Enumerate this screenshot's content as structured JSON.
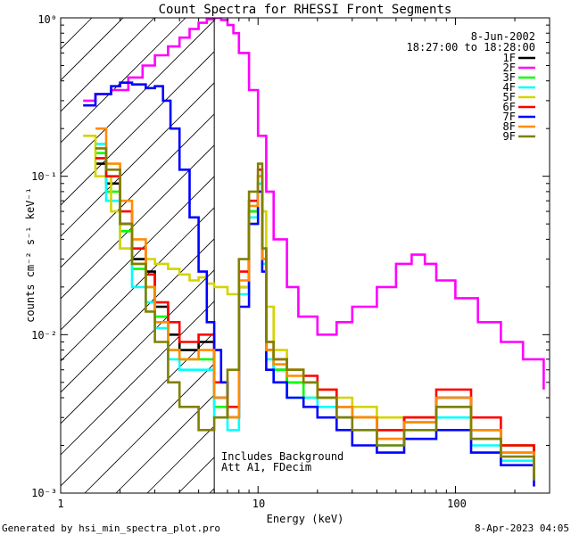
{
  "chart_data": {
    "type": "line",
    "title": "Count Spectra for RHESSI Front Segments",
    "xlabel": "Energy (keV)",
    "ylabel": "counts cm⁻² s⁻¹ keV⁻¹",
    "xscale": "log",
    "yscale": "log",
    "xlim": [
      1,
      300
    ],
    "ylim": [
      0.001,
      1
    ],
    "x_tick_labels": [
      "1",
      "10",
      "100"
    ],
    "y_tick_labels": [
      "10⁻³",
      "10⁻²",
      "10⁻¹",
      "10⁰"
    ],
    "attenuator_boundary_keV": 6,
    "legend_date": "8-Jun-2002",
    "legend_time": "18:27:00 to 18:28:00",
    "annotations": [
      "Includes Background",
      "Att A1, FDecim"
    ],
    "footer_left": "Generated by hsi_min_spectra_plot.pro",
    "footer_right": "8-Apr-2023 04:05",
    "series": [
      {
        "name": "1F",
        "color": "#000000",
        "x": [
          1.5,
          1.7,
          2.0,
          2.3,
          2.7,
          3.0,
          3.5,
          4.0,
          5.0,
          6.0,
          7.0,
          8.0,
          9.0,
          10.0,
          10.5,
          11.0,
          12.0,
          14.0,
          17.0,
          20.0,
          25.0,
          30.0,
          40.0,
          55.0,
          80.0,
          120.0,
          170.0,
          250.0
        ],
        "y": [
          0.12,
          0.09,
          0.05,
          0.03,
          0.025,
          0.015,
          0.01,
          0.008,
          0.009,
          0.004,
          0.003,
          0.02,
          0.06,
          0.09,
          0.03,
          0.008,
          0.006,
          0.005,
          0.005,
          0.004,
          0.003,
          0.003,
          0.0025,
          0.003,
          0.004,
          0.0025,
          0.002,
          0.0015
        ]
      },
      {
        "name": "2F",
        "color": "#ff00ff",
        "x": [
          1.3,
          1.5,
          1.8,
          2.2,
          2.6,
          3.0,
          3.5,
          4.0,
          4.5,
          5.0,
          5.5,
          6.0,
          6.5,
          7.0,
          7.5,
          8.0,
          9.0,
          10.0,
          11.0,
          12.0,
          14.0,
          16.0,
          20.0,
          25.0,
          30.0,
          40.0,
          50.0,
          60.0,
          70.0,
          80.0,
          100.0,
          130.0,
          170.0,
          220.0,
          280.0
        ],
        "y": [
          0.3,
          0.33,
          0.35,
          0.42,
          0.5,
          0.58,
          0.66,
          0.75,
          0.85,
          0.93,
          0.98,
          1.0,
          0.97,
          0.9,
          0.8,
          0.6,
          0.35,
          0.18,
          0.08,
          0.04,
          0.02,
          0.013,
          0.01,
          0.012,
          0.015,
          0.02,
          0.028,
          0.032,
          0.028,
          0.022,
          0.017,
          0.012,
          0.009,
          0.007,
          0.0045
        ]
      },
      {
        "name": "3F",
        "color": "#00ff00",
        "x": [
          1.5,
          1.7,
          2.0,
          2.3,
          2.7,
          3.0,
          3.5,
          4.0,
          5.0,
          6.0,
          7.0,
          8.0,
          9.0,
          10.0,
          10.5,
          11.0,
          12.0,
          14.0,
          17.0,
          20.0,
          25.0,
          30.0,
          40.0,
          55.0,
          80.0,
          120.0,
          170.0,
          250.0
        ],
        "y": [
          0.14,
          0.08,
          0.045,
          0.026,
          0.02,
          0.013,
          0.008,
          0.007,
          0.007,
          0.0035,
          0.003,
          0.02,
          0.06,
          0.1,
          0.03,
          0.008,
          0.006,
          0.005,
          0.004,
          0.004,
          0.0035,
          0.003,
          0.0022,
          0.0028,
          0.0035,
          0.0022,
          0.0018,
          0.0013
        ]
      },
      {
        "name": "4F",
        "color": "#00ffff",
        "x": [
          1.5,
          1.7,
          2.0,
          2.3,
          2.7,
          3.0,
          3.5,
          4.0,
          5.0,
          6.0,
          7.0,
          8.0,
          9.0,
          10.0,
          10.5,
          11.0,
          12.0,
          14.0,
          17.0,
          20.0,
          25.0,
          30.0,
          40.0,
          55.0,
          80.0,
          120.0,
          170.0,
          250.0
        ],
        "y": [
          0.16,
          0.07,
          0.035,
          0.02,
          0.016,
          0.011,
          0.007,
          0.006,
          0.006,
          0.003,
          0.0025,
          0.018,
          0.055,
          0.09,
          0.028,
          0.007,
          0.005,
          0.004,
          0.004,
          0.0035,
          0.003,
          0.0025,
          0.002,
          0.0025,
          0.003,
          0.002,
          0.0016,
          0.0012
        ]
      },
      {
        "name": "5F",
        "color": "#d4d400",
        "x": [
          1.3,
          1.5,
          1.8,
          2.0,
          2.3,
          2.7,
          3.0,
          3.5,
          4.0,
          4.5,
          5.0,
          5.5,
          6.0,
          7.0,
          8.0,
          9.0,
          10.0,
          10.5,
          11.0,
          12.0,
          14.0,
          17.0,
          20.0,
          25.0,
          30.0,
          40.0,
          55.0,
          80.0,
          120.0,
          170.0,
          250.0
        ],
        "y": [
          0.18,
          0.1,
          0.06,
          0.035,
          0.028,
          0.03,
          0.028,
          0.026,
          0.024,
          0.022,
          0.023,
          0.021,
          0.02,
          0.018,
          0.02,
          0.05,
          0.1,
          0.06,
          0.015,
          0.008,
          0.006,
          0.005,
          0.0045,
          0.004,
          0.0035,
          0.003,
          0.003,
          0.0035,
          0.0025,
          0.002,
          0.0014
        ]
      },
      {
        "name": "6F",
        "color": "#ff0000",
        "x": [
          1.5,
          1.7,
          2.0,
          2.3,
          2.7,
          3.0,
          3.5,
          4.0,
          5.0,
          6.0,
          7.0,
          8.0,
          9.0,
          10.0,
          10.5,
          11.0,
          12.0,
          14.0,
          17.0,
          20.0,
          25.0,
          30.0,
          40.0,
          55.0,
          80.0,
          120.0,
          170.0,
          250.0
        ],
        "y": [
          0.13,
          0.1,
          0.06,
          0.035,
          0.024,
          0.016,
          0.012,
          0.009,
          0.01,
          0.005,
          0.0035,
          0.025,
          0.07,
          0.11,
          0.035,
          0.009,
          0.007,
          0.006,
          0.0055,
          0.0045,
          0.0035,
          0.003,
          0.0025,
          0.003,
          0.0045,
          0.003,
          0.002,
          0.0015
        ]
      },
      {
        "name": "7F",
        "color": "#0000ff",
        "x": [
          1.3,
          1.5,
          1.8,
          2.0,
          2.3,
          2.7,
          3.0,
          3.3,
          3.6,
          4.0,
          4.5,
          5.0,
          5.5,
          6.0,
          6.5,
          7.0,
          8.0,
          9.0,
          10.0,
          10.5,
          11.0,
          12.0,
          14.0,
          17.0,
          20.0,
          25.0,
          30.0,
          40.0,
          55.0,
          80.0,
          120.0,
          170.0,
          250.0
        ],
        "y": [
          0.28,
          0.33,
          0.37,
          0.39,
          0.38,
          0.36,
          0.37,
          0.3,
          0.2,
          0.11,
          0.055,
          0.025,
          0.012,
          0.008,
          0.005,
          0.003,
          0.015,
          0.05,
          0.08,
          0.025,
          0.006,
          0.005,
          0.004,
          0.0035,
          0.003,
          0.0025,
          0.002,
          0.0018,
          0.0022,
          0.0025,
          0.0018,
          0.0015,
          0.0011
        ]
      },
      {
        "name": "8F",
        "color": "#ff8c00",
        "x": [
          1.5,
          1.7,
          2.0,
          2.3,
          2.7,
          3.0,
          3.5,
          4.0,
          5.0,
          6.0,
          7.0,
          8.0,
          9.0,
          10.0,
          10.5,
          11.0,
          12.0,
          14.0,
          17.0,
          20.0,
          25.0,
          30.0,
          40.0,
          55.0,
          80.0,
          120.0,
          170.0,
          250.0
        ],
        "y": [
          0.2,
          0.12,
          0.07,
          0.04,
          0.02,
          0.012,
          0.008,
          0.007,
          0.008,
          0.004,
          0.003,
          0.022,
          0.065,
          0.1,
          0.03,
          0.008,
          0.0065,
          0.0055,
          0.005,
          0.004,
          0.0035,
          0.003,
          0.0022,
          0.0028,
          0.004,
          0.0025,
          0.0018,
          0.0013
        ]
      },
      {
        "name": "9F",
        "color": "#808000",
        "x": [
          1.5,
          1.7,
          2.0,
          2.3,
          2.7,
          3.0,
          3.5,
          4.0,
          5.0,
          6.0,
          7.0,
          8.0,
          9.0,
          10.0,
          10.5,
          11.0,
          12.0,
          14.0,
          17.0,
          20.0,
          25.0,
          30.0,
          40.0,
          55.0,
          80.0,
          120.0,
          170.0,
          250.0
        ],
        "y": [
          0.15,
          0.11,
          0.05,
          0.028,
          0.014,
          0.009,
          0.005,
          0.0035,
          0.0025,
          0.003,
          0.006,
          0.03,
          0.08,
          0.12,
          0.035,
          0.009,
          0.007,
          0.006,
          0.005,
          0.004,
          0.003,
          0.0025,
          0.002,
          0.0025,
          0.0035,
          0.0022,
          0.0017,
          0.0012
        ]
      }
    ]
  }
}
